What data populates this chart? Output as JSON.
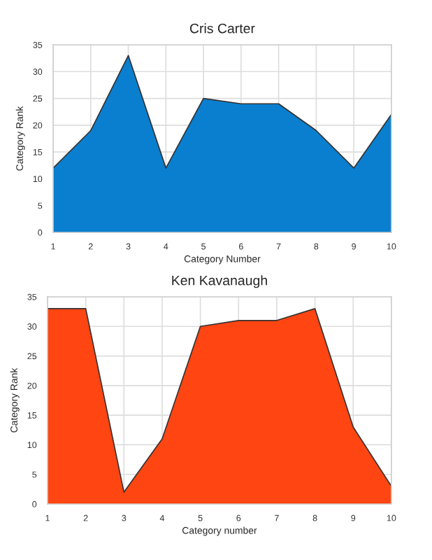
{
  "chart_data": [
    {
      "type": "area",
      "title": "Cris Carter",
      "xlabel": "Category Number",
      "ylabel": "Category Rank",
      "x": [
        1,
        2,
        3,
        4,
        5,
        6,
        7,
        8,
        9,
        10
      ],
      "xlim": [
        1,
        10
      ],
      "xticks": [
        1,
        2,
        3,
        4,
        5,
        6,
        7,
        8,
        9,
        10
      ],
      "ylim": [
        0,
        35
      ],
      "yticks": [
        0,
        5,
        10,
        15,
        20,
        25,
        30,
        35
      ],
      "grid": true,
      "series": [
        {
          "color": "#0a7fcf",
          "values": [
            12,
            19,
            33,
            12,
            25,
            24,
            24,
            19,
            12,
            22
          ]
        }
      ]
    },
    {
      "type": "area",
      "title": "Ken Kavanaugh",
      "xlabel": "Category number",
      "ylabel": "Category Rank",
      "x": [
        1,
        2,
        3,
        4,
        5,
        6,
        7,
        8,
        9,
        10
      ],
      "xlim": [
        1,
        10
      ],
      "xticks": [
        1,
        2,
        3,
        4,
        5,
        6,
        7,
        8,
        9,
        10
      ],
      "ylim": [
        0,
        35
      ],
      "yticks": [
        0,
        5,
        10,
        15,
        20,
        25,
        30,
        35
      ],
      "grid": true,
      "series": [
        {
          "color": "#ff4512",
          "values": [
            33,
            33,
            2,
            11,
            30,
            31,
            31,
            33,
            13,
            3
          ]
        }
      ]
    }
  ]
}
